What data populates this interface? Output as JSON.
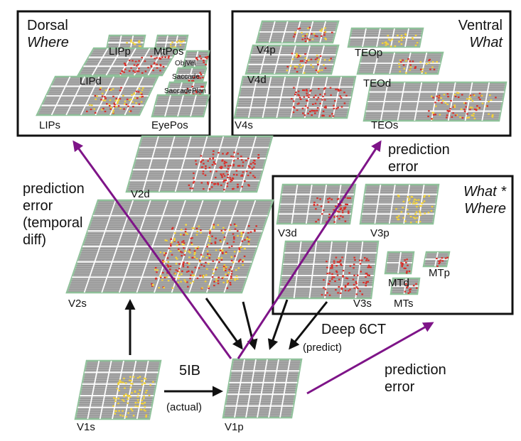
{
  "boxes": {
    "dorsal": {
      "line1": "Dorsal",
      "line2": "Where"
    },
    "ventral": {
      "line1": "Ventral",
      "line2": "What"
    },
    "whatwhere": {
      "line1": "What *",
      "line2": "Where"
    }
  },
  "layers": {
    "LIPp": "LIPp",
    "MtPos": "MtPos",
    "ObjVel": "ObjVel",
    "Saccade": "Saccade",
    "SaccadePlan": "SaccadePlan",
    "LIPd": "LIPd",
    "LIPs": "LIPs",
    "EyePos": "EyePos",
    "V4p": "V4p",
    "V4d": "V4d",
    "V4s": "V4s",
    "TEOp": "TEOp",
    "TEOd": "TEOd",
    "TEOs": "TEOs",
    "V2d": "V2d",
    "V2s": "V2s",
    "V3d": "V3d",
    "V3p": "V3p",
    "V3s": "V3s",
    "MTd": "MTd",
    "MTp": "MTp",
    "MTs": "MTs",
    "V1s": "V1s",
    "V1p": "V1p"
  },
  "annotations": {
    "pred_left": [
      "prediction",
      "error",
      "(temporal",
      " diff)"
    ],
    "pred_right_top": [
      "prediction",
      "error"
    ],
    "pred_bottom": [
      "prediction",
      "error"
    ],
    "deep6ct": "Deep 6CT",
    "predict": "(predict)",
    "fiveib": "5IB",
    "actual": "(actual)"
  },
  "colors": {
    "layer_fill": "#9a9a9a",
    "layer_border": "#8fc19a",
    "grid_line": "#ffffff",
    "activity_red": "#d8302a",
    "activity_yellow": "#f2d23a",
    "prediction_arrow": "#7e1488",
    "black_arrow": "#111111"
  }
}
